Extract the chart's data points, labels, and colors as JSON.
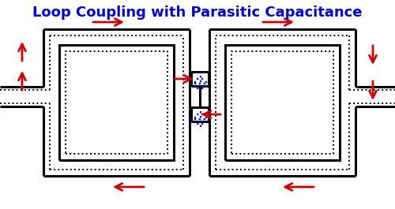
{
  "title": "Loop Coupling with Parasitic Capacitance",
  "title_color": "#0000CC",
  "title_fontsize": 13,
  "bg_color": "#FFFFFF",
  "line_color": "#000000",
  "arrow_color": "#CC0000",
  "dot_color": "#0000BB",
  "fig_width": 5.0,
  "fig_height": 2.65,
  "dpi": 100,
  "lw_main": 2.2,
  "lw_dot": 1.4,
  "lw_arrow": 2.0,
  "arrow_ms": 16
}
